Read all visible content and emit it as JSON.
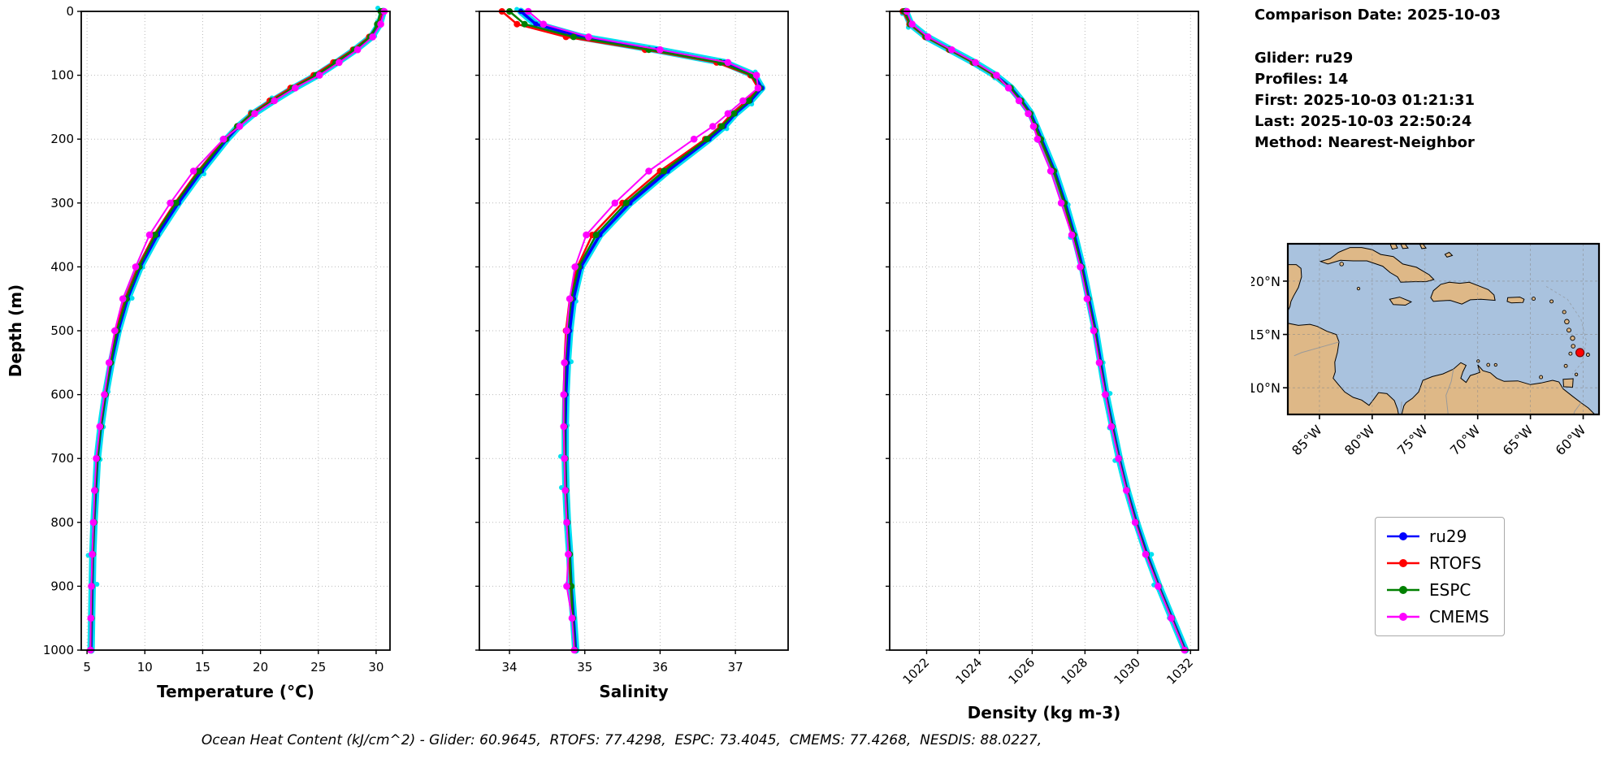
{
  "info_panel": {
    "comparison_date": "Comparison Date: 2025-10-03",
    "lines": [
      "Glider: ru29",
      "Profiles: 14",
      "First: 2025-10-03 01:21:31",
      "Last: 2025-10-03 22:50:24",
      "Method: Nearest-Neighbor"
    ]
  },
  "footer": {
    "text": "Ocean Heat Content (kJ/cm^2) - Glider: 60.9645,  RTOFS: 77.4298,  ESPC: 73.4045,  CMEMS: 77.4268,  NESDIS: 88.0227,"
  },
  "legend": {
    "entries": [
      {
        "label": "ru29",
        "color": "#0000ff"
      },
      {
        "label": "RTOFS",
        "color": "#ff0000"
      },
      {
        "label": "ESPC",
        "color": "#008000"
      },
      {
        "label": "CMEMS",
        "color": "#ff00ff"
      }
    ]
  },
  "colors": {
    "ru29": "#0000ff",
    "rtofs": "#ff0000",
    "espc": "#008000",
    "cmems": "#ff00ff",
    "ru29_raw_scatter": "#00e0f0",
    "grid": "#b9b9b9",
    "land": "#deb887",
    "ocean": "#a9c2de",
    "coastline": "#000000",
    "country_border": "#999999",
    "glider_marker": "#ff0000"
  },
  "chart_data": [
    {
      "id": "temperature-profile",
      "type": "line",
      "xlabel": "Temperature (°C)",
      "ylabel": "Depth (m)",
      "show_ylabel": true,
      "show_depth_labels": true,
      "xlim": [
        4.5,
        31.2
      ],
      "ylim": [
        0,
        1000
      ],
      "y_inverted": true,
      "xticks": [
        5,
        10,
        15,
        20,
        25,
        30
      ],
      "xtick_labels": [
        "5",
        "10",
        "15",
        "20",
        "25",
        "30"
      ],
      "xtick_rotation": 0,
      "yticks": [
        0,
        100,
        200,
        300,
        400,
        500,
        600,
        700,
        800,
        900,
        1000
      ],
      "depths": [
        0,
        20,
        40,
        60,
        80,
        100,
        120,
        140,
        160,
        180,
        200,
        250,
        300,
        350,
        400,
        450,
        500,
        550,
        600,
        650,
        700,
        750,
        800,
        850,
        900,
        950,
        1000
      ],
      "series": [
        {
          "name": "ru29",
          "color": "#0000ff",
          "values": [
            30.6,
            30.3,
            29.6,
            28.2,
            26.6,
            24.9,
            22.9,
            21.1,
            19.4,
            18.1,
            17.1,
            14.9,
            12.9,
            11.1,
            9.6,
            8.5,
            7.7,
            7.1,
            6.6,
            6.2,
            5.9,
            5.75,
            5.6,
            5.5,
            5.45,
            5.4,
            5.35
          ]
        },
        {
          "name": "RTOFS",
          "color": "#ff0000",
          "values": [
            30.5,
            30.2,
            29.4,
            28.0,
            26.3,
            24.6,
            22.6,
            20.8,
            19.2,
            18.0,
            16.9,
            14.6,
            12.6,
            10.8,
            9.4,
            8.3,
            7.5,
            7.0,
            6.55,
            6.15,
            5.85,
            5.7,
            5.6,
            5.5,
            5.4,
            5.35,
            5.3
          ]
        },
        {
          "name": "ESPC",
          "color": "#008000",
          "values": [
            30.4,
            30.1,
            29.5,
            28.1,
            26.5,
            24.8,
            22.8,
            21.0,
            19.3,
            18.0,
            17.0,
            14.7,
            12.7,
            10.9,
            9.5,
            8.4,
            7.6,
            7.05,
            6.6,
            6.2,
            5.9,
            5.72,
            5.6,
            5.5,
            5.42,
            5.38,
            5.32
          ]
        },
        {
          "name": "CMEMS",
          "color": "#ff00ff",
          "values": [
            30.7,
            30.4,
            29.7,
            28.4,
            26.8,
            25.1,
            23.0,
            21.2,
            19.5,
            18.2,
            16.8,
            14.2,
            12.2,
            10.4,
            9.2,
            8.1,
            7.4,
            6.9,
            6.5,
            6.1,
            5.8,
            5.65,
            5.55,
            5.45,
            5.38,
            5.33,
            5.3
          ]
        }
      ]
    },
    {
      "id": "salinity-profile",
      "type": "line",
      "xlabel": "Salinity",
      "ylabel": "",
      "show_ylabel": false,
      "show_depth_labels": false,
      "xlim": [
        33.6,
        37.7
      ],
      "ylim": [
        0,
        1000
      ],
      "y_inverted": true,
      "xticks": [
        34,
        35,
        36,
        37
      ],
      "xtick_labels": [
        "34",
        "35",
        "36",
        "37"
      ],
      "xtick_rotation": 0,
      "yticks": [
        0,
        100,
        200,
        300,
        400,
        500,
        600,
        700,
        800,
        900,
        1000
      ],
      "depths": [
        0,
        20,
        40,
        60,
        80,
        100,
        120,
        140,
        160,
        180,
        200,
        250,
        300,
        350,
        400,
        450,
        500,
        550,
        600,
        650,
        700,
        750,
        800,
        850,
        900,
        950,
        1000
      ],
      "series": [
        {
          "name": "ru29",
          "color": "#0000ff",
          "values": [
            34.15,
            34.35,
            34.95,
            35.95,
            36.85,
            37.25,
            37.35,
            37.2,
            37.0,
            36.85,
            36.65,
            36.1,
            35.6,
            35.2,
            34.95,
            34.85,
            34.8,
            34.77,
            34.75,
            34.74,
            34.74,
            34.75,
            34.77,
            34.8,
            34.82,
            34.85,
            34.88
          ]
        },
        {
          "name": "RTOFS",
          "color": "#ff0000",
          "values": [
            33.9,
            34.1,
            34.75,
            35.8,
            36.75,
            37.2,
            37.3,
            37.15,
            36.95,
            36.8,
            36.6,
            36.0,
            35.5,
            35.1,
            34.9,
            34.8,
            34.75,
            34.73,
            34.72,
            34.72,
            34.73,
            34.74,
            34.76,
            34.79,
            34.81,
            34.84,
            34.86
          ]
        },
        {
          "name": "ESPC",
          "color": "#008000",
          "values": [
            34.0,
            34.2,
            34.85,
            35.85,
            36.8,
            37.22,
            37.32,
            37.18,
            36.98,
            36.82,
            36.62,
            36.05,
            35.55,
            35.15,
            34.92,
            34.82,
            34.77,
            34.74,
            34.73,
            34.73,
            34.74,
            34.75,
            34.77,
            34.8,
            34.82,
            34.84,
            34.87
          ]
        },
        {
          "name": "CMEMS",
          "color": "#ff00ff",
          "values": [
            34.25,
            34.45,
            35.05,
            36.0,
            36.9,
            37.28,
            37.3,
            37.1,
            36.9,
            36.7,
            36.45,
            35.85,
            35.4,
            35.02,
            34.87,
            34.8,
            34.76,
            34.73,
            34.72,
            34.72,
            34.73,
            34.74,
            34.76,
            34.78,
            34.76,
            34.83,
            34.86
          ]
        }
      ]
    },
    {
      "id": "density-profile",
      "type": "line",
      "xlabel": "Density (kg m-3)",
      "ylabel": "",
      "show_ylabel": false,
      "show_depth_labels": false,
      "xlim": [
        1020.6,
        1032.3
      ],
      "ylim": [
        0,
        1000
      ],
      "y_inverted": true,
      "xticks": [
        1022,
        1024,
        1026,
        1028,
        1030,
        1032
      ],
      "xtick_labels": [
        "1022",
        "1024",
        "1026",
        "1028",
        "1030",
        "1032"
      ],
      "xtick_rotation": 45,
      "yticks": [
        0,
        100,
        200,
        300,
        400,
        500,
        600,
        700,
        800,
        900,
        1000
      ],
      "depths": [
        0,
        20,
        40,
        60,
        80,
        100,
        120,
        140,
        160,
        180,
        200,
        250,
        300,
        350,
        400,
        450,
        500,
        550,
        600,
        650,
        700,
        750,
        800,
        850,
        900,
        950,
        1000
      ],
      "series": [
        {
          "name": "ru29",
          "color": "#0000ff",
          "values": [
            1021.2,
            1021.4,
            1022.0,
            1022.9,
            1023.8,
            1024.6,
            1025.2,
            1025.6,
            1025.95,
            1026.15,
            1026.35,
            1026.85,
            1027.25,
            1027.6,
            1027.9,
            1028.15,
            1028.4,
            1028.6,
            1028.8,
            1029.05,
            1029.3,
            1029.6,
            1029.95,
            1030.35,
            1030.8,
            1031.3,
            1031.8
          ]
        },
        {
          "name": "RTOFS",
          "color": "#ff0000",
          "values": [
            1021.1,
            1021.35,
            1021.95,
            1022.85,
            1023.75,
            1024.55,
            1025.15,
            1025.55,
            1025.9,
            1026.1,
            1026.3,
            1026.8,
            1027.2,
            1027.55,
            1027.85,
            1028.1,
            1028.35,
            1028.55,
            1028.78,
            1029.02,
            1029.28,
            1029.58,
            1029.92,
            1030.32,
            1030.78,
            1031.28,
            1031.78
          ]
        },
        {
          "name": "ESPC",
          "color": "#008000",
          "values": [
            1021.15,
            1021.38,
            1021.98,
            1022.88,
            1023.78,
            1024.58,
            1025.18,
            1025.58,
            1025.92,
            1026.12,
            1026.32,
            1026.82,
            1027.22,
            1027.57,
            1027.87,
            1028.12,
            1028.37,
            1028.57,
            1028.79,
            1029.03,
            1029.29,
            1029.59,
            1029.93,
            1030.33,
            1030.79,
            1031.29,
            1031.79
          ]
        },
        {
          "name": "CMEMS",
          "color": "#ff00ff",
          "values": [
            1021.25,
            1021.45,
            1022.05,
            1022.95,
            1023.85,
            1024.65,
            1025.1,
            1025.5,
            1025.85,
            1026.05,
            1026.2,
            1026.7,
            1027.1,
            1027.5,
            1027.82,
            1028.08,
            1028.33,
            1028.54,
            1028.77,
            1029.0,
            1029.27,
            1029.57,
            1029.9,
            1030.3,
            1030.77,
            1031.27,
            1031.77
          ]
        }
      ]
    }
  ],
  "map": {
    "extent": {
      "lon_min": -88,
      "lon_max": -58.5,
      "lat_min": 7.5,
      "lat_max": 23.5
    },
    "lat_tick_values": [
      10,
      15,
      20
    ],
    "lat_tick_labels": [
      "10°N",
      "15°N",
      "20°N"
    ],
    "lon_tick_values": [
      -85,
      -80,
      -75,
      -70,
      -65,
      -60
    ],
    "lon_tick_labels": [
      "85°W",
      "80°W",
      "75°W",
      "70°W",
      "65°W",
      "60°W"
    ],
    "marker": {
      "lon": -60.3,
      "lat": 13.3,
      "color": "#ff0000"
    }
  }
}
